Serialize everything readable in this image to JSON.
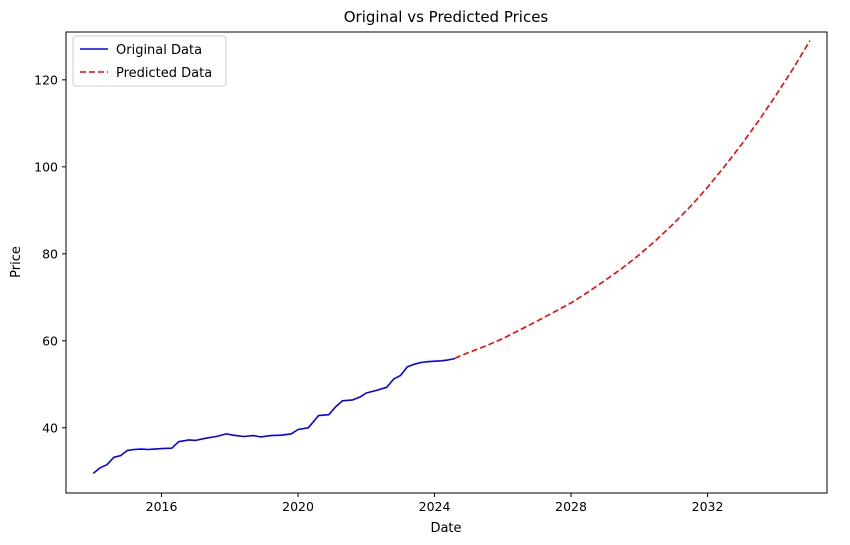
{
  "chart_data": {
    "type": "line",
    "title": "Original vs Predicted Prices",
    "xlabel": "Date",
    "ylabel": "Price",
    "xlim": [
      2013.2,
      2035.5
    ],
    "ylim": [
      25,
      131
    ],
    "x_ticks": [
      "2016",
      "2020",
      "2024",
      "2028",
      "2032"
    ],
    "x_tick_values": [
      2016,
      2020,
      2024,
      2028,
      2032
    ],
    "y_ticks": [
      "40",
      "60",
      "80",
      "100",
      "120"
    ],
    "y_tick_values": [
      40,
      60,
      80,
      100,
      120
    ],
    "grid": false,
    "legend": {
      "placement": "top-left"
    },
    "series": [
      {
        "name": "Original Data",
        "color": "#0000ff",
        "style": "solid",
        "x": [
          2014.0,
          2014.2,
          2014.4,
          2014.6,
          2014.8,
          2015.0,
          2015.2,
          2015.4,
          2015.6,
          2015.8,
          2016.0,
          2016.3,
          2016.5,
          2016.8,
          2017.0,
          2017.3,
          2017.6,
          2017.9,
          2018.1,
          2018.4,
          2018.7,
          2018.9,
          2019.2,
          2019.5,
          2019.8,
          2020.0,
          2020.3,
          2020.6,
          2020.9,
          2021.1,
          2021.3,
          2021.6,
          2021.8,
          2022.0,
          2022.3,
          2022.6,
          2022.8,
          2023.0,
          2023.2,
          2023.4,
          2023.6,
          2023.8,
          2024.0,
          2024.2,
          2024.4,
          2024.6
        ],
        "y": [
          29.5,
          30.8,
          31.5,
          33.2,
          33.6,
          34.8,
          35.0,
          35.1,
          35.0,
          35.1,
          35.2,
          35.3,
          36.8,
          37.2,
          37.1,
          37.6,
          38.0,
          38.6,
          38.3,
          38.0,
          38.2,
          37.9,
          38.2,
          38.3,
          38.6,
          39.6,
          40.0,
          42.8,
          43.0,
          44.8,
          46.2,
          46.4,
          47.0,
          48.0,
          48.6,
          49.3,
          51.2,
          52.0,
          54.0,
          54.6,
          55.0,
          55.2,
          55.3,
          55.4,
          55.6,
          55.9
        ]
      },
      {
        "name": "Predicted Data",
        "color": "#ff0000",
        "style": "dashed",
        "x": [
          2024.6,
          2025.0,
          2025.5,
          2026.0,
          2026.5,
          2027.0,
          2027.5,
          2028.0,
          2028.5,
          2029.0,
          2029.5,
          2030.0,
          2030.5,
          2031.0,
          2031.5,
          2032.0,
          2032.5,
          2033.0,
          2033.5,
          2034.0,
          2034.5,
          2035.0
        ],
        "y": [
          56.0,
          57.3,
          58.8,
          60.5,
          62.5,
          64.5,
          66.6,
          68.7,
          71.2,
          73.9,
          76.7,
          79.8,
          83.2,
          86.9,
          90.9,
          95.3,
          100.1,
          105.2,
          110.6,
          116.4,
          122.5,
          129.0
        ]
      }
    ]
  }
}
